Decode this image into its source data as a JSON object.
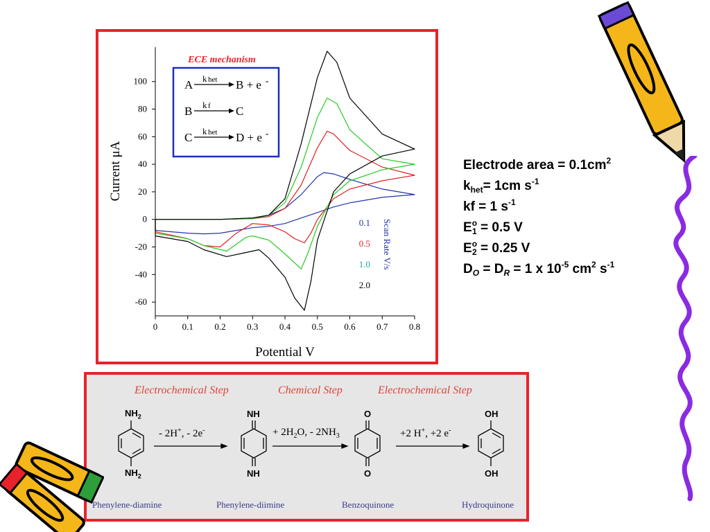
{
  "chart_data": {
    "type": "line",
    "xlabel": "Potential V",
    "ylabel": "Current μA",
    "xlim": [
      0,
      0.8
    ],
    "ylim": [
      -70,
      125
    ],
    "xticks": [
      "0",
      "0.1",
      "0.2",
      "0.3",
      "0.4",
      "0.5",
      "0.6",
      "0.7",
      "0.8"
    ],
    "yticks": [
      "-60",
      "-40",
      "-20",
      "0",
      "20",
      "40",
      "60",
      "80",
      "100"
    ],
    "legend_title": "Scan Rate V/s",
    "legend_position": "right",
    "series": [
      {
        "name": "0.1",
        "color": "#2233aa",
        "x": [
          0,
          0.1,
          0.2,
          0.25,
          0.3,
          0.35,
          0.4,
          0.45,
          0.5,
          0.52,
          0.55,
          0.6,
          0.7,
          0.8,
          0.7,
          0.6,
          0.55,
          0.5,
          0.45,
          0.4,
          0.35,
          0.3,
          0.25,
          0.2,
          0.15,
          0.1,
          0,
          0
        ],
        "y": [
          0,
          0,
          0,
          0.5,
          1,
          3,
          8,
          18,
          31,
          34,
          33,
          29,
          22,
          18,
          16,
          12,
          9,
          5,
          1,
          -3,
          -5,
          -6,
          -8,
          -10,
          -10.5,
          -10,
          -8,
          0
        ]
      },
      {
        "name": "0.5",
        "color": "#e02020",
        "x": [
          0,
          0.1,
          0.2,
          0.3,
          0.35,
          0.4,
          0.45,
          0.5,
          0.53,
          0.55,
          0.6,
          0.7,
          0.8,
          0.7,
          0.6,
          0.55,
          0.5,
          0.48,
          0.46,
          0.43,
          0.4,
          0.35,
          0.3,
          0.25,
          0.2,
          0.15,
          0.1,
          0,
          0
        ],
        "y": [
          0,
          0,
          0,
          0.5,
          2,
          8,
          25,
          52,
          64,
          62,
          50,
          38,
          32,
          28,
          22,
          15,
          0,
          -10,
          -17,
          -14,
          -9,
          -4,
          -3,
          -10,
          -20,
          -19,
          -14,
          -9,
          0
        ]
      },
      {
        "name": "1.0",
        "color": "#22cc22",
        "x": [
          0,
          0.1,
          0.2,
          0.3,
          0.35,
          0.4,
          0.45,
          0.5,
          0.53,
          0.56,
          0.6,
          0.7,
          0.8,
          0.7,
          0.6,
          0.55,
          0.5,
          0.47,
          0.45,
          0.4,
          0.35,
          0.3,
          0.28,
          0.22,
          0.15,
          0.1,
          0,
          0
        ],
        "y": [
          0,
          0,
          0,
          0.5,
          3,
          12,
          38,
          74,
          88,
          84,
          65,
          44,
          40,
          36,
          28,
          18,
          -5,
          -25,
          -36,
          -25,
          -15,
          -12,
          -13,
          -23,
          -19,
          -14,
          -10,
          0
        ]
      },
      {
        "name": "2.0",
        "color": "#000000",
        "x": [
          0,
          0.1,
          0.2,
          0.3,
          0.35,
          0.4,
          0.45,
          0.5,
          0.53,
          0.56,
          0.6,
          0.7,
          0.8,
          0.7,
          0.6,
          0.55,
          0.5,
          0.48,
          0.46,
          0.43,
          0.4,
          0.35,
          0.32,
          0.28,
          0.22,
          0.15,
          0.1,
          0,
          0
        ],
        "y": [
          0,
          0,
          0,
          1,
          3,
          15,
          55,
          103,
          122,
          114,
          88,
          62,
          51,
          46,
          33,
          20,
          -15,
          -45,
          -66,
          -57,
          -42,
          -28,
          -22,
          -24,
          -27,
          -22,
          -16,
          -12,
          0
        ]
      }
    ],
    "annotation": {
      "title": "ECE mechanism",
      "box_color": "#1a2fc0",
      "title_color": "#e8222a",
      "reactions": [
        {
          "reactant": "A",
          "k": "k",
          "k_sub": "het",
          "product": "B + e",
          "charge": "-"
        },
        {
          "reactant": "B",
          "k": "k",
          "k_sub": "f",
          "product": "C",
          "charge": ""
        },
        {
          "reactant": "C",
          "k": "k",
          "k_sub": "het",
          "product": "D + e",
          "charge": "-"
        }
      ]
    }
  },
  "frame_color": "#e8222a",
  "parameters": {
    "area_label": "Electrode area = 0.1cm",
    "area_exp": "2",
    "k_main": "k",
    "khet_sub": "het",
    "khet_value": "= 1cm s",
    "khet_exp": "-1",
    "kf_text": "kf = 1 s",
    "kf_exp": "-1",
    "e1_main": "E",
    "e1_sup": "o",
    "e1_sub": "1",
    "e1_value": " = 0.5 V",
    "e2_main": "E",
    "e2_sup": "o",
    "e2_sub": "2",
    "e2_value": " = 0.25 V",
    "d_main": "D",
    "d_o_sub": "O",
    "d_eq": " = D",
    "d_r_sub": "R",
    "d_value": " = 1 x 10",
    "d_exp1": "-5",
    "d_unit": " cm",
    "d_exp2": "2",
    "d_unit2": " s",
    "d_exp3": "-1"
  },
  "scheme": {
    "step_titles": [
      "Electrochemical Step",
      "Chemical Step",
      "Electrochemical Step"
    ],
    "compounds": [
      "Phenylene-diamine",
      "Phenylene-diimine",
      "Benzoquinone",
      "Hydroquinone"
    ],
    "rxn1": {
      "a": "- 2H",
      "a_sup": "+",
      "b": ", - 2e",
      "b_sup": "-"
    },
    "rxn2": {
      "a": "+ 2H",
      "a_sub": "2",
      "b": "O, - 2NH",
      "b_sub": "3"
    },
    "rxn3": {
      "a": "+2 H",
      "a_sup": "+",
      "b": ", +2 e",
      "b_sup": "-"
    },
    "atoms": {
      "nh2": "NH",
      "nh2_sub": "2",
      "nh": "NH",
      "o": "O",
      "oh": "OH"
    }
  }
}
